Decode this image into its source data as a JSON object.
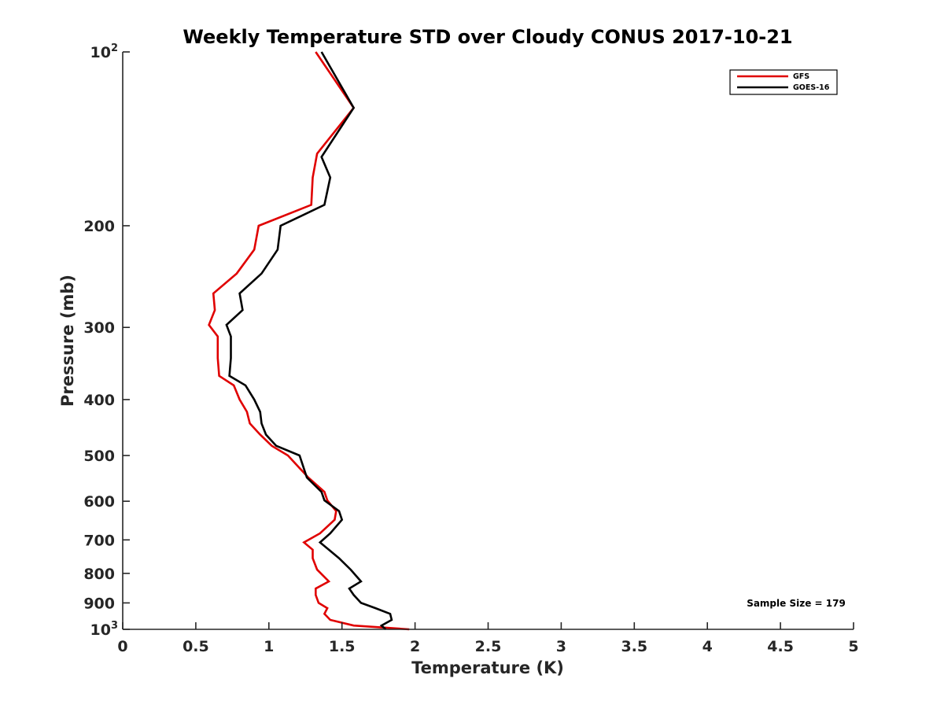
{
  "chart_data": {
    "type": "line",
    "title": "Weekly Temperature STD over Cloudy CONUS 2017-10-21",
    "xlabel": "Temperature (K)",
    "ylabel": "Pressure (mb)",
    "xlim": [
      0,
      5
    ],
    "ylim": [
      100,
      1000
    ],
    "y_scale": "log",
    "y_reversed": true,
    "grid": false,
    "legend_position": "top-right",
    "x_ticks": [
      "0",
      "0.5",
      "1",
      "1.5",
      "2",
      "2.5",
      "3",
      "3.5",
      "4",
      "4.5",
      "5"
    ],
    "y_ticks": [
      {
        "value": 100,
        "base": "10",
        "exp": "2"
      },
      {
        "value": 200,
        "label": "200"
      },
      {
        "value": 300,
        "label": "300"
      },
      {
        "value": 400,
        "label": "400"
      },
      {
        "value": 500,
        "label": "500"
      },
      {
        "value": 600,
        "label": "600"
      },
      {
        "value": 700,
        "label": "700"
      },
      {
        "value": 800,
        "label": "800"
      },
      {
        "value": 900,
        "label": "900"
      },
      {
        "value": 1000,
        "base": "10",
        "exp": "3"
      }
    ],
    "annotation": "Sample Size = 179",
    "series": [
      {
        "name": "GFS",
        "color": "#e00000",
        "points": [
          [
            1.32,
            100
          ],
          [
            1.58,
            125
          ],
          [
            1.33,
            150
          ],
          [
            1.3,
            165
          ],
          [
            1.29,
            184
          ],
          [
            0.93,
            200
          ],
          [
            0.9,
            220
          ],
          [
            0.78,
            242
          ],
          [
            0.62,
            262
          ],
          [
            0.63,
            280
          ],
          [
            0.59,
            297
          ],
          [
            0.65,
            311
          ],
          [
            0.65,
            339
          ],
          [
            0.66,
            364
          ],
          [
            0.76,
            378
          ],
          [
            0.8,
            400
          ],
          [
            0.85,
            420
          ],
          [
            0.87,
            440
          ],
          [
            0.94,
            460
          ],
          [
            1.02,
            481
          ],
          [
            1.13,
            500
          ],
          [
            1.27,
            546
          ],
          [
            1.38,
            578
          ],
          [
            1.4,
            598
          ],
          [
            1.46,
            624
          ],
          [
            1.45,
            646
          ],
          [
            1.35,
            682
          ],
          [
            1.24,
            707
          ],
          [
            1.3,
            728
          ],
          [
            1.3,
            753
          ],
          [
            1.33,
            788
          ],
          [
            1.41,
            826
          ],
          [
            1.32,
            850
          ],
          [
            1.32,
            872
          ],
          [
            1.34,
            900
          ],
          [
            1.4,
            919
          ],
          [
            1.38,
            940
          ],
          [
            1.42,
            963
          ],
          [
            1.58,
            985
          ],
          [
            1.96,
            1000
          ]
        ]
      },
      {
        "name": "GOES-16",
        "color": "#000000",
        "points": [
          [
            1.36,
            100
          ],
          [
            1.58,
            125
          ],
          [
            1.36,
            152
          ],
          [
            1.42,
            165
          ],
          [
            1.38,
            184
          ],
          [
            1.08,
            200
          ],
          [
            1.06,
            220
          ],
          [
            0.95,
            242
          ],
          [
            0.8,
            262
          ],
          [
            0.82,
            280
          ],
          [
            0.71,
            297
          ],
          [
            0.74,
            311
          ],
          [
            0.74,
            339
          ],
          [
            0.73,
            364
          ],
          [
            0.84,
            378
          ],
          [
            0.9,
            400
          ],
          [
            0.94,
            420
          ],
          [
            0.95,
            440
          ],
          [
            0.98,
            460
          ],
          [
            1.05,
            481
          ],
          [
            1.21,
            500
          ],
          [
            1.26,
            546
          ],
          [
            1.36,
            578
          ],
          [
            1.38,
            598
          ],
          [
            1.48,
            624
          ],
          [
            1.5,
            646
          ],
          [
            1.42,
            682
          ],
          [
            1.35,
            707
          ],
          [
            1.41,
            728
          ],
          [
            1.48,
            753
          ],
          [
            1.56,
            788
          ],
          [
            1.63,
            826
          ],
          [
            1.55,
            850
          ],
          [
            1.58,
            872
          ],
          [
            1.63,
            900
          ],
          [
            1.73,
            919
          ],
          [
            1.83,
            940
          ],
          [
            1.84,
            963
          ],
          [
            1.77,
            985
          ],
          [
            1.8,
            1000
          ]
        ]
      }
    ]
  }
}
